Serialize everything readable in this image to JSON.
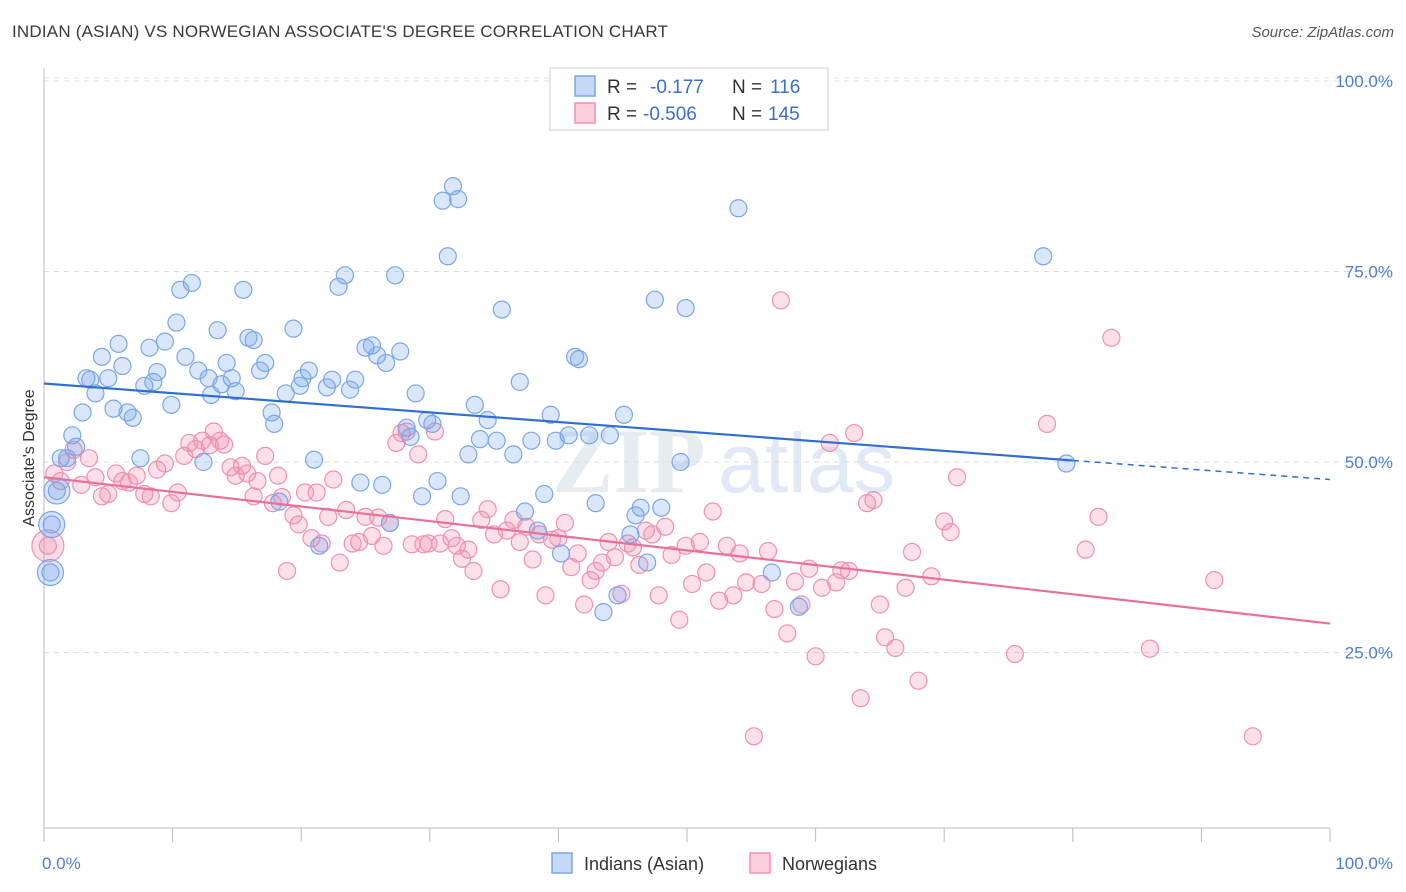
{
  "header": {
    "title": "INDIAN (ASIAN) VS NORWEGIAN ASSOCIATE'S DEGREE CORRELATION CHART",
    "source": "Source: ZipAtlas.com"
  },
  "watermark": "ZIPatlas",
  "legend": {
    "rows": [
      {
        "r_label": "R =",
        "r_value": "-0.177",
        "n_label": "N =",
        "n_value": "116",
        "color": "#7aa7e8"
      },
      {
        "r_label": "R =",
        "r_value": "-0.506",
        "n_label": "N =",
        "n_value": "145",
        "color": "#f090b0"
      }
    ]
  },
  "bottom_legend": [
    {
      "label": "Indians (Asian)",
      "color": "#7aa7e8"
    },
    {
      "label": "Norwegians",
      "color": "#f090b0"
    }
  ],
  "chart_data": {
    "type": "scatter",
    "title": "INDIAN (ASIAN) VS NORWEGIAN ASSOCIATE'S DEGREE CORRELATION CHART",
    "ylabel": "Associate's Degree",
    "xlabel": "",
    "x_ticks": [
      "0.0%",
      "100.0%"
    ],
    "y_ticks": [
      "100.0%",
      "75.0%",
      "50.0%",
      "25.0%"
    ],
    "xlim": [
      0,
      100
    ],
    "ylim": [
      0,
      105
    ],
    "grid": true,
    "legend_position": "top-center",
    "series": [
      {
        "name": "Indians (Asian)",
        "color": "#7aa7e8",
        "trend": {
          "x": [
            0,
            80
          ],
          "y": [
            60.3,
            50.2
          ],
          "dashed_to": [
            100,
            47.7
          ]
        },
        "points": [
          [
            0.6,
            41.8
          ],
          [
            0.5,
            35.5
          ],
          [
            1.0,
            46.2
          ],
          [
            1.3,
            50.5
          ],
          [
            1.8,
            50.5
          ],
          [
            2.2,
            53.5
          ],
          [
            2.5,
            52
          ],
          [
            3,
            56.5
          ],
          [
            3.3,
            61
          ],
          [
            3.6,
            60.8
          ],
          [
            4,
            59
          ],
          [
            4.5,
            63.8
          ],
          [
            5,
            61
          ],
          [
            5.4,
            57
          ],
          [
            5.8,
            65.5
          ],
          [
            6.1,
            62.6
          ],
          [
            6.5,
            56.5
          ],
          [
            6.9,
            55.8
          ],
          [
            7.5,
            50.5
          ],
          [
            7.8,
            60
          ],
          [
            8.2,
            65
          ],
          [
            8.5,
            60.5
          ],
          [
            8.8,
            61.8
          ],
          [
            9.4,
            65.8
          ],
          [
            9.9,
            57.5
          ],
          [
            10.3,
            68.3
          ],
          [
            10.6,
            72.6
          ],
          [
            11,
            63.8
          ],
          [
            11.5,
            73.5
          ],
          [
            12,
            62
          ],
          [
            12.4,
            50
          ],
          [
            12.8,
            61
          ],
          [
            13,
            58.8
          ],
          [
            13.5,
            67.3
          ],
          [
            13.8,
            60.2
          ],
          [
            14.2,
            63
          ],
          [
            14.6,
            61
          ],
          [
            14.9,
            59.3
          ],
          [
            15.5,
            72.6
          ],
          [
            15.9,
            66.3
          ],
          [
            16.3,
            66
          ],
          [
            16.8,
            62
          ],
          [
            17.2,
            63
          ],
          [
            17.7,
            56.5
          ],
          [
            17.9,
            55
          ],
          [
            18.3,
            44.8
          ],
          [
            18.8,
            59
          ],
          [
            19.4,
            67.5
          ],
          [
            19.9,
            60
          ],
          [
            20.1,
            61
          ],
          [
            20.6,
            62
          ],
          [
            21,
            50.3
          ],
          [
            21.4,
            39
          ],
          [
            22,
            59.8
          ],
          [
            22.4,
            60.8
          ],
          [
            22.9,
            73
          ],
          [
            23.4,
            74.5
          ],
          [
            23.8,
            59.5
          ],
          [
            24.2,
            60.8
          ],
          [
            24.6,
            47.3
          ],
          [
            25,
            65
          ],
          [
            25.5,
            65.3
          ],
          [
            25.9,
            64
          ],
          [
            26.3,
            47
          ],
          [
            26.6,
            63
          ],
          [
            26.9,
            42
          ],
          [
            27.3,
            74.5
          ],
          [
            27.7,
            64.5
          ],
          [
            28.2,
            54.5
          ],
          [
            28.5,
            53.3
          ],
          [
            28.9,
            59
          ],
          [
            29.4,
            45.5
          ],
          [
            29.8,
            55.5
          ],
          [
            30.2,
            55
          ],
          [
            30.6,
            47.5
          ],
          [
            31,
            84.3
          ],
          [
            31.4,
            77
          ],
          [
            31.8,
            86.2
          ],
          [
            32.2,
            84.5
          ],
          [
            32.4,
            45.5
          ],
          [
            33,
            51
          ],
          [
            33.5,
            57.5
          ],
          [
            33.9,
            53
          ],
          [
            34.5,
            55.5
          ],
          [
            35.2,
            52.8
          ],
          [
            35.6,
            70
          ],
          [
            36.5,
            51
          ],
          [
            37,
            60.5
          ],
          [
            37.4,
            43.5
          ],
          [
            37.9,
            52.8
          ],
          [
            38.4,
            41
          ],
          [
            38.9,
            45.8
          ],
          [
            39.4,
            56.2
          ],
          [
            39.8,
            52.8
          ],
          [
            40.2,
            38
          ],
          [
            40.8,
            53.5
          ],
          [
            41.3,
            63.8
          ],
          [
            41.6,
            63.5
          ],
          [
            42.4,
            53.5
          ],
          [
            42.9,
            44.6
          ],
          [
            43.5,
            30.3
          ],
          [
            44,
            53.5
          ],
          [
            44.6,
            32.5
          ],
          [
            45.1,
            56.2
          ],
          [
            45.6,
            40.5
          ],
          [
            46,
            43
          ],
          [
            46.4,
            44
          ],
          [
            46.9,
            36.8
          ],
          [
            47.5,
            71.3
          ],
          [
            48,
            44
          ],
          [
            49.5,
            50
          ],
          [
            49.9,
            70.2
          ],
          [
            54,
            83.3
          ],
          [
            56.6,
            35.5
          ],
          [
            58.7,
            31
          ],
          [
            77.7,
            77
          ],
          [
            79.5,
            49.8
          ]
        ]
      },
      {
        "name": "Norwegians",
        "color": "#f090b0",
        "trend": {
          "x": [
            0,
            100
          ],
          "y": [
            48,
            28.8
          ]
        },
        "points": [
          [
            0.3,
            39
          ],
          [
            0.8,
            48.5
          ],
          [
            1.3,
            47.5
          ],
          [
            1.8,
            50
          ],
          [
            2.3,
            51.6
          ],
          [
            2.9,
            47
          ],
          [
            3.5,
            50.5
          ],
          [
            4,
            48
          ],
          [
            4.5,
            45.5
          ],
          [
            5,
            45.8
          ],
          [
            5.6,
            48.5
          ],
          [
            6.1,
            47.5
          ],
          [
            6.6,
            47.3
          ],
          [
            7.2,
            48.2
          ],
          [
            7.8,
            45.8
          ],
          [
            8.3,
            45.5
          ],
          [
            8.8,
            49
          ],
          [
            9.4,
            49.8
          ],
          [
            9.9,
            44.6
          ],
          [
            10.4,
            46
          ],
          [
            10.9,
            50.8
          ],
          [
            11.3,
            52.5
          ],
          [
            11.8,
            51.7
          ],
          [
            12.3,
            52.8
          ],
          [
            12.9,
            52.2
          ],
          [
            13.2,
            54
          ],
          [
            13.7,
            52.8
          ],
          [
            14,
            52.3
          ],
          [
            14.5,
            49.3
          ],
          [
            14.9,
            48.2
          ],
          [
            15.4,
            49.5
          ],
          [
            15.8,
            48.5
          ],
          [
            16.3,
            45.5
          ],
          [
            16.6,
            47.5
          ],
          [
            17.2,
            50.8
          ],
          [
            17.8,
            44.6
          ],
          [
            18.2,
            48.2
          ],
          [
            18.5,
            45.4
          ],
          [
            18.9,
            35.7
          ],
          [
            19.4,
            43
          ],
          [
            19.8,
            41.8
          ],
          [
            20.3,
            46
          ],
          [
            20.8,
            40
          ],
          [
            21.2,
            46
          ],
          [
            21.6,
            39.3
          ],
          [
            22.1,
            42.8
          ],
          [
            22.5,
            47.7
          ],
          [
            23,
            36.8
          ],
          [
            23.5,
            43.7
          ],
          [
            24,
            39.3
          ],
          [
            24.5,
            39.5
          ],
          [
            25,
            42.8
          ],
          [
            25.5,
            40.3
          ],
          [
            26,
            42.7
          ],
          [
            26.4,
            39
          ],
          [
            26.9,
            42
          ],
          [
            27.4,
            52.5
          ],
          [
            27.8,
            53.8
          ],
          [
            28.2,
            54
          ],
          [
            28.6,
            39.2
          ],
          [
            29.1,
            51
          ],
          [
            29.5,
            39.2
          ],
          [
            29.9,
            39.3
          ],
          [
            30.4,
            54
          ],
          [
            30.8,
            39.3
          ],
          [
            31.2,
            42.5
          ],
          [
            31.7,
            40
          ],
          [
            32.1,
            39
          ],
          [
            32.5,
            37.3
          ],
          [
            33,
            38.5
          ],
          [
            33.4,
            35.7
          ],
          [
            34,
            42.4
          ],
          [
            34.5,
            43.8
          ],
          [
            35,
            40.5
          ],
          [
            35.5,
            33.3
          ],
          [
            36,
            41
          ],
          [
            36.5,
            42.4
          ],
          [
            37,
            39.5
          ],
          [
            37.5,
            41.5
          ],
          [
            38,
            37.2
          ],
          [
            38.5,
            40.5
          ],
          [
            39,
            32.5
          ],
          [
            39.5,
            39.8
          ],
          [
            40,
            40
          ],
          [
            40.5,
            42
          ],
          [
            41,
            36.2
          ],
          [
            41.5,
            38
          ],
          [
            42,
            31.3
          ],
          [
            42.5,
            34.5
          ],
          [
            42.9,
            35.7
          ],
          [
            43.4,
            36.8
          ],
          [
            43.9,
            39.5
          ],
          [
            44.4,
            37.5
          ],
          [
            44.9,
            32.7
          ],
          [
            45.4,
            39.3
          ],
          [
            45.8,
            38.8
          ],
          [
            46.3,
            36.5
          ],
          [
            46.8,
            41
          ],
          [
            47.3,
            40.5
          ],
          [
            47.8,
            32.5
          ],
          [
            48.3,
            41.5
          ],
          [
            48.8,
            37.8
          ],
          [
            49.4,
            29.3
          ],
          [
            49.9,
            39
          ],
          [
            50.4,
            34
          ],
          [
            51,
            39.5
          ],
          [
            51.5,
            35.5
          ],
          [
            52,
            43.5
          ],
          [
            52.5,
            31.8
          ],
          [
            53.1,
            39
          ],
          [
            53.6,
            32.5
          ],
          [
            54.1,
            38
          ],
          [
            54.6,
            34.2
          ],
          [
            55.2,
            14
          ],
          [
            55.8,
            34
          ],
          [
            56.3,
            38.3
          ],
          [
            56.8,
            30.7
          ],
          [
            57.3,
            71.2
          ],
          [
            57.8,
            27.5
          ],
          [
            58.4,
            34.3
          ],
          [
            58.9,
            31.3
          ],
          [
            59.5,
            36
          ],
          [
            60,
            24.5
          ],
          [
            60.5,
            33.5
          ],
          [
            61.1,
            52.5
          ],
          [
            61.6,
            34.2
          ],
          [
            62,
            35.8
          ],
          [
            62.6,
            35.7
          ],
          [
            63,
            53.8
          ],
          [
            63.5,
            19
          ],
          [
            64,
            44.6
          ],
          [
            64.5,
            45
          ],
          [
            65,
            31.3
          ],
          [
            65.4,
            27
          ],
          [
            66.2,
            25.6
          ],
          [
            67,
            33.5
          ],
          [
            67.5,
            38.2
          ],
          [
            68,
            21.3
          ],
          [
            69,
            35
          ],
          [
            70,
            42.2
          ],
          [
            70.5,
            40.8
          ],
          [
            71,
            48
          ],
          [
            75.5,
            24.8
          ],
          [
            78,
            55
          ],
          [
            81,
            38.5
          ],
          [
            82,
            42.8
          ],
          [
            83,
            66.3
          ],
          [
            86,
            25.5
          ],
          [
            91,
            34.5
          ],
          [
            94,
            14
          ]
        ]
      }
    ]
  }
}
